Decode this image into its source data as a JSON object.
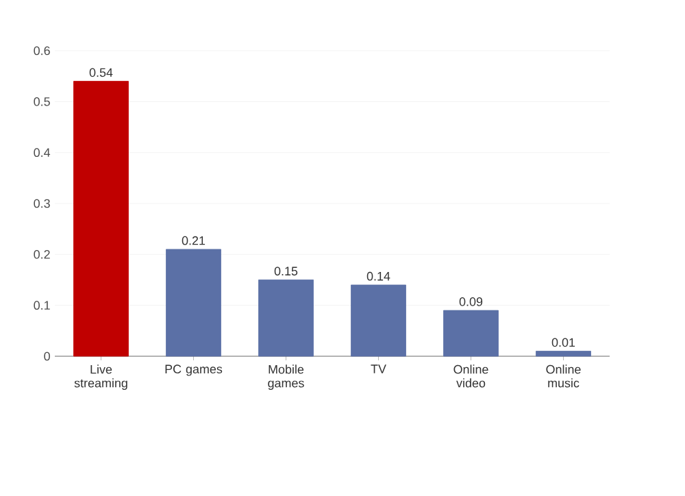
{
  "chart_data": {
    "type": "bar",
    "categories": [
      "Live streaming",
      "PC games",
      "Mobile games",
      "TV",
      "Online video",
      "Online music"
    ],
    "values": [
      0.54,
      0.21,
      0.15,
      0.14,
      0.09,
      0.01
    ],
    "colors": [
      "#c00000",
      "#5b70a6",
      "#5b70a6",
      "#5b70a6",
      "#5b70a6",
      "#5b70a6"
    ],
    "ylim": [
      0,
      0.6
    ],
    "yticks": [
      0,
      0.1,
      0.2,
      0.3,
      0.4,
      0.5,
      0.6
    ],
    "grid": "y",
    "data_labels": true
  }
}
